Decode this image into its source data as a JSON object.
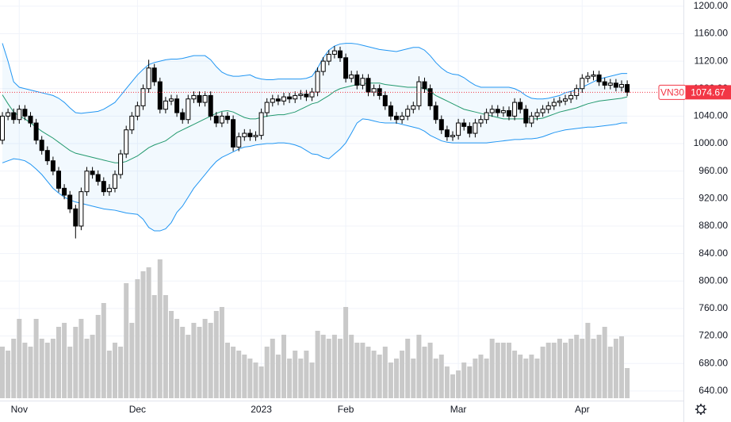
{
  "chart_data": {
    "type": "candlestick",
    "name": "VN30",
    "categories": [
      null,
      null,
      null,
      "Nov",
      null,
      null,
      null,
      null,
      null,
      null,
      null,
      null,
      null,
      null,
      null,
      null,
      null,
      null,
      null,
      null,
      null,
      null,
      null,
      null,
      "Dec",
      null,
      null,
      null,
      null,
      null,
      null,
      null,
      null,
      null,
      null,
      null,
      null,
      null,
      null,
      null,
      null,
      null,
      null,
      null,
      null,
      null,
      "2023",
      null,
      null,
      null,
      null,
      null,
      null,
      null,
      null,
      null,
      null,
      null,
      null,
      null,
      null,
      "Feb",
      null,
      null,
      null,
      null,
      null,
      null,
      null,
      null,
      null,
      null,
      null,
      null,
      null,
      null,
      null,
      null,
      null,
      null,
      null,
      "Mar",
      null,
      null,
      null,
      null,
      null,
      null,
      null,
      null,
      null,
      null,
      null,
      null,
      null,
      null,
      null,
      null,
      null,
      null,
      null,
      null,
      null,
      "Apr",
      null,
      null,
      null,
      null,
      null,
      null,
      null,
      null
    ],
    "open": [
      1005,
      1040,
      1045,
      1035,
      1050,
      1040,
      1030,
      1005,
      990,
      975,
      960,
      935,
      925,
      905,
      880,
      930,
      960,
      955,
      945,
      930,
      935,
      955,
      985,
      1020,
      1040,
      1055,
      1080,
      1110,
      1090,
      1050,
      1062,
      1065,
      1045,
      1035,
      1065,
      1070,
      1060,
      1070,
      1040,
      1030,
      1040,
      1035,
      995,
      1010,
      1015,
      1010,
      1012,
      1045,
      1060,
      1065,
      1062,
      1068,
      1065,
      1070,
      1072,
      1068,
      1075,
      1105,
      1120,
      1130,
      1135,
      1125,
      1095,
      1100,
      1085,
      1095,
      1075,
      1080,
      1070,
      1055,
      1040,
      1035,
      1040,
      1050,
      1055,
      1090,
      1080,
      1055,
      1035,
      1020,
      1010,
      1012,
      1030,
      1025,
      1015,
      1030,
      1035,
      1045,
      1050,
      1045,
      1048,
      1040,
      1060,
      1050,
      1030,
      1040,
      1045,
      1050,
      1055,
      1060,
      1062,
      1065,
      1070,
      1080,
      1095,
      1098,
      1100,
      1090,
      1085,
      1088,
      1082,
      1086
    ],
    "high": [
      1046,
      1051,
      1051,
      1056,
      1056,
      1046,
      1036,
      1011,
      996,
      981,
      966,
      941,
      931,
      911,
      936,
      966,
      966,
      961,
      951,
      941,
      961,
      991,
      1026,
      1046,
      1061,
      1086,
      1122,
      1116,
      1096,
      1068,
      1071,
      1071,
      1051,
      1071,
      1076,
      1076,
      1076,
      1076,
      1046,
      1046,
      1046,
      1041,
      1016,
      1021,
      1021,
      1018,
      1051,
      1066,
      1071,
      1071,
      1074,
      1074,
      1076,
      1078,
      1078,
      1081,
      1111,
      1126,
      1136,
      1142,
      1141,
      1131,
      1106,
      1106,
      1101,
      1101,
      1086,
      1086,
      1076,
      1061,
      1046,
      1046,
      1056,
      1061,
      1098,
      1096,
      1086,
      1061,
      1041,
      1026,
      1018,
      1036,
      1036,
      1031,
      1036,
      1041,
      1051,
      1056,
      1056,
      1054,
      1054,
      1066,
      1066,
      1056,
      1046,
      1051,
      1056,
      1061,
      1066,
      1068,
      1071,
      1076,
      1086,
      1101,
      1104,
      1106,
      1106,
      1096,
      1094,
      1094,
      1092,
      1092
    ],
    "low": [
      999,
      1034,
      1029,
      1029,
      1034,
      1024,
      999,
      984,
      969,
      954,
      929,
      919,
      899,
      862,
      874,
      924,
      949,
      939,
      924,
      924,
      929,
      949,
      979,
      1014,
      1034,
      1049,
      1074,
      1084,
      1044,
      1044,
      1056,
      1039,
      1029,
      1029,
      1059,
      1054,
      1054,
      1034,
      1024,
      1024,
      1029,
      989,
      989,
      1004,
      1004,
      1004,
      1006,
      1039,
      1054,
      1056,
      1056,
      1059,
      1059,
      1064,
      1062,
      1062,
      1069,
      1099,
      1114,
      1124,
      1119,
      1089,
      1089,
      1079,
      1079,
      1069,
      1069,
      1064,
      1049,
      1034,
      1029,
      1029,
      1034,
      1044,
      1049,
      1074,
      1049,
      1029,
      1014,
      1004,
      1004,
      1006,
      1019,
      1009,
      1009,
      1024,
      1029,
      1039,
      1039,
      1039,
      1034,
      1034,
      1044,
      1024,
      1024,
      1034,
      1039,
      1044,
      1049,
      1054,
      1056,
      1059,
      1064,
      1074,
      1089,
      1092,
      1084,
      1079,
      1079,
      1076,
      1076,
      1069
    ],
    "close": [
      1040,
      1045,
      1035,
      1050,
      1040,
      1030,
      1005,
      990,
      975,
      960,
      935,
      925,
      905,
      880,
      930,
      960,
      955,
      945,
      930,
      935,
      955,
      985,
      1020,
      1040,
      1055,
      1080,
      1110,
      1090,
      1050,
      1062,
      1065,
      1045,
      1035,
      1065,
      1070,
      1060,
      1070,
      1040,
      1030,
      1040,
      1035,
      995,
      1010,
      1015,
      1010,
      1012,
      1045,
      1060,
      1065,
      1062,
      1068,
      1065,
      1070,
      1072,
      1068,
      1075,
      1105,
      1120,
      1130,
      1135,
      1125,
      1095,
      1100,
      1085,
      1095,
      1075,
      1080,
      1070,
      1055,
      1040,
      1035,
      1040,
      1050,
      1055,
      1090,
      1080,
      1055,
      1035,
      1020,
      1010,
      1012,
      1030,
      1025,
      1015,
      1030,
      1035,
      1045,
      1050,
      1045,
      1048,
      1040,
      1060,
      1050,
      1030,
      1040,
      1045,
      1050,
      1055,
      1060,
      1062,
      1065,
      1070,
      1080,
      1095,
      1098,
      1100,
      1090,
      1085,
      1088,
      1082,
      1086,
      1074.67
    ],
    "upper_band": [
      1146,
      1120,
      1090,
      1082,
      1080,
      1078,
      1076,
      1074,
      1072,
      1070,
      1066,
      1060,
      1052,
      1045,
      1044,
      1045,
      1046,
      1047,
      1050,
      1055,
      1060,
      1070,
      1080,
      1090,
      1100,
      1108,
      1115,
      1118,
      1120,
      1122,
      1123,
      1123,
      1124,
      1126,
      1128,
      1128,
      1128,
      1122,
      1112,
      1104,
      1100,
      1098,
      1098,
      1099,
      1100,
      1096,
      1094,
      1093,
      1093,
      1094,
      1094,
      1094,
      1094,
      1094,
      1095,
      1098,
      1110,
      1125,
      1136,
      1142,
      1145,
      1146,
      1146,
      1145,
      1143,
      1141,
      1139,
      1137,
      1136,
      1135,
      1134,
      1136,
      1138,
      1140,
      1140,
      1136,
      1128,
      1118,
      1110,
      1104,
      1101,
      1100,
      1096,
      1090,
      1085,
      1082,
      1082,
      1082,
      1082,
      1082,
      1082,
      1080,
      1076,
      1070,
      1066,
      1065,
      1065,
      1066,
      1068,
      1070,
      1074,
      1076,
      1078,
      1082,
      1086,
      1090,
      1094,
      1096,
      1098,
      1100,
      1102,
      1102
    ],
    "middle_band": [
      1071,
      1058,
      1046,
      1040,
      1036,
      1030,
      1024,
      1018,
      1013,
      1008,
      1002,
      996,
      990,
      986,
      984,
      982,
      980,
      978,
      976,
      974,
      972,
      972,
      974,
      978,
      982,
      988,
      994,
      998,
      1001,
      1004,
      1010,
      1016,
      1020,
      1024,
      1028,
      1032,
      1036,
      1040,
      1044,
      1047,
      1048,
      1046,
      1042,
      1038,
      1036,
      1036,
      1038,
      1040,
      1041,
      1042,
      1042,
      1044,
      1046,
      1050,
      1054,
      1058,
      1060,
      1065,
      1070,
      1076,
      1080,
      1082,
      1084,
      1086,
      1087,
      1088,
      1088,
      1088,
      1086,
      1085,
      1084,
      1083,
      1082,
      1082,
      1082,
      1080,
      1076,
      1070,
      1066,
      1062,
      1058,
      1054,
      1050,
      1048,
      1046,
      1044,
      1042,
      1040,
      1038,
      1036,
      1036,
      1036,
      1036,
      1036,
      1036,
      1036,
      1037,
      1040,
      1043,
      1046,
      1048,
      1050,
      1052,
      1055,
      1058,
      1060,
      1062,
      1063,
      1064,
      1065,
      1066,
      1068
    ],
    "lower_band": [
      972,
      975,
      978,
      977,
      975,
      970,
      963,
      955,
      945,
      935,
      928,
      922,
      918,
      915,
      913,
      911,
      909,
      907,
      905,
      904,
      903,
      901,
      899,
      898,
      897,
      890,
      878,
      873,
      873,
      876,
      885,
      900,
      909,
      922,
      935,
      945,
      955,
      965,
      974,
      980,
      984,
      988,
      992,
      995,
      996,
      998,
      999,
      1000,
      1000,
      1001,
      1001,
      1000,
      998,
      995,
      990,
      985,
      984,
      980,
      978,
      985,
      992,
      1001,
      1015,
      1030,
      1036,
      1035,
      1033,
      1031,
      1030,
      1030,
      1030,
      1028,
      1026,
      1024,
      1022,
      1018,
      1012,
      1008,
      1004,
      1002,
      1001,
      1001,
      1001,
      1001,
      1001,
      1001,
      1001,
      1002,
      1003,
      1004,
      1005,
      1006,
      1006,
      1007,
      1007,
      1008,
      1010,
      1013,
      1016,
      1018,
      1020,
      1021,
      1022,
      1023,
      1024,
      1024,
      1025,
      1026,
      1027,
      1028,
      1030,
      1030
    ],
    "volume": [
      65,
      60,
      75,
      100,
      70,
      65,
      100,
      75,
      70,
      75,
      90,
      95,
      65,
      90,
      100,
      75,
      80,
      105,
      120,
      60,
      70,
      65,
      145,
      95,
      150,
      160,
      165,
      130,
      175,
      130,
      110,
      100,
      90,
      80,
      95,
      90,
      100,
      95,
      110,
      115,
      70,
      65,
      60,
      55,
      50,
      45,
      40,
      65,
      75,
      55,
      80,
      50,
      60,
      50,
      60,
      45,
      85,
      80,
      75,
      80,
      75,
      115,
      80,
      70,
      70,
      65,
      60,
      55,
      65,
      45,
      50,
      60,
      75,
      50,
      80,
      65,
      70,
      50,
      55,
      40,
      30,
      35,
      45,
      40,
      50,
      55,
      50,
      75,
      70,
      70,
      70,
      60,
      55,
      50,
      55,
      50,
      65,
      70,
      70,
      75,
      70,
      75,
      80,
      75,
      95,
      75,
      80,
      90,
      65,
      75,
      78,
      38
    ],
    "volume_lim": [
      0,
      200
    ],
    "ylim": [
      626,
      1209
    ],
    "yticks": [
      {
        "value": 1200,
        "label": "1200.00"
      },
      {
        "value": 1160,
        "label": "1160.00"
      },
      {
        "value": 1120,
        "label": "1120.00"
      },
      {
        "value": 1080,
        "label": "1080.00"
      },
      {
        "value": 1040,
        "label": "1040.00"
      },
      {
        "value": 1000,
        "label": "1000.00"
      },
      {
        "value": 960,
        "label": "960.00"
      },
      {
        "value": 920,
        "label": "920.00"
      },
      {
        "value": 880,
        "label": "880.00"
      },
      {
        "value": 840,
        "label": "840.00"
      },
      {
        "value": 800,
        "label": "800.00"
      },
      {
        "value": 760,
        "label": "760.00"
      },
      {
        "value": 720,
        "label": "720.00"
      },
      {
        "value": 680,
        "label": "680.00"
      },
      {
        "value": 640,
        "label": "640.00"
      }
    ],
    "grid": true,
    "up_color": "#ffffff",
    "down_color": "#000000",
    "band_color": "#2196f3",
    "middle_color": "#22996e",
    "volume_color": "#c9c9c9",
    "last_color": "#f23645"
  }
}
